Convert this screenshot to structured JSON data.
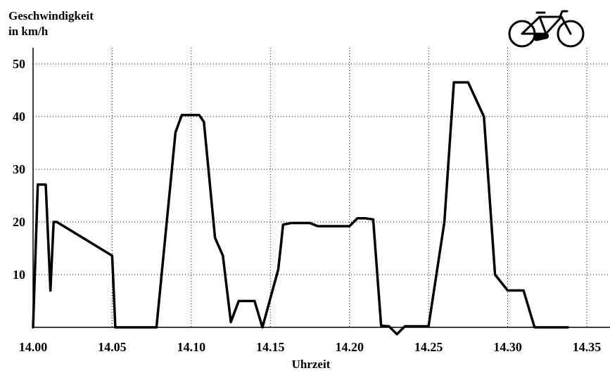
{
  "chart_data": {
    "type": "line",
    "ylabel": [
      "Geschwindigkeit",
      "in km/h"
    ],
    "xlabel": "Uhrzeit",
    "xlim": [
      14.0,
      14.35
    ],
    "ylim": [
      0,
      50
    ],
    "xticks": [
      "14.00",
      "14.05",
      "14.10",
      "14.15",
      "14.20",
      "14.25",
      "14.30",
      "14.35"
    ],
    "yticks": [
      "10",
      "20",
      "30",
      "40",
      "50"
    ],
    "grid": true,
    "icon": "bicycle-icon",
    "series": [
      {
        "x": [
          14.0,
          14.003,
          14.008,
          14.011,
          14.013,
          14.015,
          14.05,
          14.052,
          14.055,
          14.062,
          14.07,
          14.078,
          14.09,
          14.094,
          14.1,
          14.103,
          14.105,
          14.108,
          14.115,
          14.12,
          14.125,
          14.13,
          14.137,
          14.138,
          14.14,
          14.145,
          14.155,
          14.157,
          14.158,
          14.163,
          14.168,
          14.175,
          14.18,
          14.185,
          14.19,
          14.195,
          14.2,
          14.205,
          14.21,
          14.215,
          14.22,
          14.225,
          14.23,
          14.235,
          14.238,
          14.24,
          14.241,
          14.243,
          14.245,
          14.25,
          14.26,
          14.266,
          14.275,
          14.285,
          14.292,
          14.3,
          14.307,
          14.31,
          14.317,
          14.325,
          14.332,
          14.338
        ],
        "values": [
          0,
          27.1,
          27.1,
          7,
          20,
          20,
          13.6,
          0,
          0,
          0,
          0,
          0,
          37,
          40.3,
          40.3,
          40.3,
          40.3,
          39,
          17,
          13.6,
          1,
          5,
          5,
          5,
          5,
          0,
          11,
          16.5,
          19.5,
          19.8,
          19.8,
          19.8,
          19.2,
          19.2,
          19.2,
          19.2,
          19.2,
          20.7,
          20.7,
          20.5,
          0.3,
          0.2,
          -1.3,
          0.2,
          0.2,
          0.2,
          0.2,
          0.2,
          0.2,
          0.2,
          20,
          46.5,
          46.5,
          40,
          10,
          7,
          7,
          7,
          0,
          0,
          0,
          0
        ]
      }
    ]
  }
}
